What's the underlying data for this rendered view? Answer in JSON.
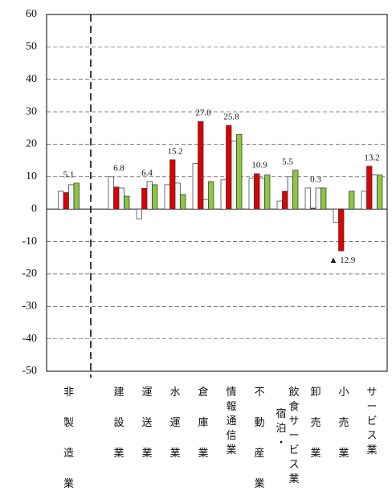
{
  "chart_data": {
    "type": "bar",
    "categories": [
      "非製造業",
      "建設業",
      "運送業",
      "水運業",
      "倉庫業",
      "情報通信業",
      "不動産業",
      "宿泊・飲食サービス業",
      "卸売業",
      "小売業",
      "サービス業"
    ],
    "series": [
      {
        "color": "#ffffff",
        "values": [
          5.5,
          10,
          -3,
          7.5,
          14,
          9,
          9.5,
          2.5,
          6.5,
          -4,
          5.5
        ]
      },
      {
        "color": "#e00000",
        "values": [
          5.1,
          6.8,
          6.4,
          15.2,
          27.0,
          25.8,
          10.9,
          5.5,
          0.3,
          -12.9,
          13.2
        ],
        "value_labels": [
          "5.1",
          "6.8",
          "6.4",
          "15.2",
          "27.0",
          "25.8",
          "10.9",
          "5.5",
          "0.3",
          "▲ 12.9",
          "13.2"
        ]
      },
      {
        "color": "#eef4fb",
        "values": [
          7.5,
          6.5,
          8.5,
          8,
          3,
          21,
          9.5,
          10,
          6.5,
          0,
          10.5
        ]
      },
      {
        "color": "#8dc63f",
        "values": [
          8,
          4,
          7.5,
          4.5,
          8.5,
          23,
          10.5,
          12,
          6.5,
          5.5,
          10.5
        ]
      }
    ],
    "ylim": [
      -50,
      60
    ],
    "yticks": [
      -50,
      -40,
      -30,
      -20,
      -10,
      0,
      10,
      20,
      30,
      40,
      50,
      60
    ],
    "grid": true
  }
}
